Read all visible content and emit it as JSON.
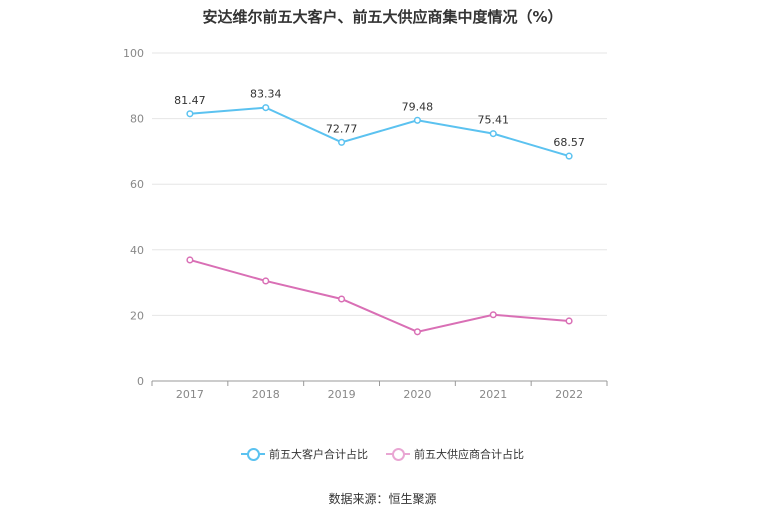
{
  "title": "安达维尔前五大客户、前五大供应商集中度情况（%）",
  "source": "数据来源：恒生聚源",
  "chart_data": {
    "type": "line",
    "title": "安达维尔前五大客户、前五大供应商集中度情况（%）",
    "categories": [
      "2017",
      "2018",
      "2019",
      "2020",
      "2021",
      "2022"
    ],
    "ylim": [
      0,
      100
    ],
    "yticks": [
      0,
      20,
      40,
      60,
      80,
      100
    ],
    "grid": true,
    "legend_position": "bottom",
    "series": [
      {
        "name": "前五大客户合计占比",
        "color": "#5bc2f0",
        "values": [
          81.47,
          83.34,
          72.77,
          79.48,
          75.41,
          68.57
        ],
        "labels": [
          "81.47",
          "83.34",
          "72.77",
          "79.48",
          "75.41",
          "68.57"
        ]
      },
      {
        "name": "前五大供应商合计占比",
        "color": "#d96fb5",
        "values": [
          36.9,
          30.5,
          25.0,
          15.0,
          20.2,
          18.3
        ],
        "labels": null
      }
    ]
  }
}
